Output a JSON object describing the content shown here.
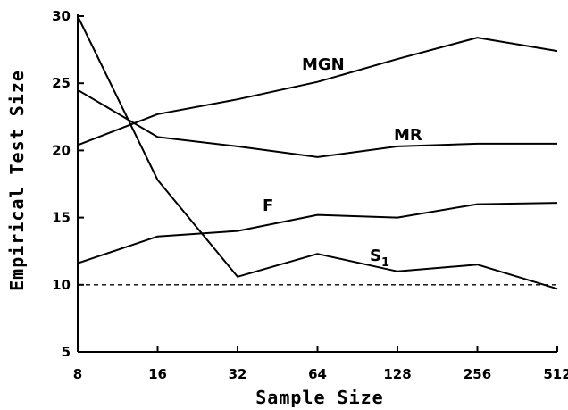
{
  "chart_data": {
    "type": "line",
    "xlabel": "Sample Size",
    "ylabel": "Empirical Test Size",
    "x_scale": "log2",
    "categories": [
      8,
      16,
      32,
      64,
      128,
      256,
      512
    ],
    "x_tick_labels": [
      "8",
      "16",
      "32",
      "64",
      "128",
      "256",
      "512"
    ],
    "ylim": [
      5,
      30
    ],
    "y_ticks": [
      5,
      10,
      15,
      20,
      25,
      30
    ],
    "y_tick_labels": [
      "5",
      "10",
      "15",
      "20",
      "25",
      "30"
    ],
    "grid": false,
    "legend": "none",
    "reference_line": {
      "y": 10,
      "style": "dashed"
    },
    "series": [
      {
        "name": "MGN",
        "label_main": "MGN",
        "label_sub": "",
        "values": [
          20.4,
          22.7,
          23.8,
          25.1,
          26.8,
          28.4,
          27.4
        ]
      },
      {
        "name": "MR",
        "label_main": "MR",
        "label_sub": "",
        "values": [
          24.5,
          21.0,
          20.3,
          19.5,
          20.3,
          20.5,
          20.5
        ]
      },
      {
        "name": "F",
        "label_main": "F",
        "label_sub": "",
        "values": [
          11.6,
          13.6,
          14.0,
          15.2,
          15.0,
          16.0,
          16.1
        ]
      },
      {
        "name": "S1",
        "label_main": "S",
        "label_sub": "1",
        "values": [
          30.0,
          17.8,
          10.6,
          12.3,
          11.0,
          11.5,
          9.7
        ]
      }
    ]
  }
}
